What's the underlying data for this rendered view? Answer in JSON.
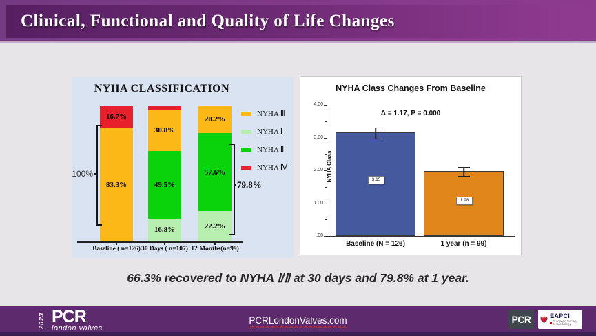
{
  "header": {
    "title": "Clinical, Functional and Quality of Life Changes"
  },
  "statement": "66.3% recovered to NYHA  Ⅰ/Ⅱ at 30 days and 79.8% at 1 year.",
  "chart_data": [
    {
      "type": "bar",
      "variant": "stacked-percent",
      "title": "NYHA CLASSIFICATION",
      "categories": [
        "Baseline ( n=126)",
        "30 Days ( n=107)",
        "12 Months(n=99)"
      ],
      "legend_order": [
        "NYHA Ⅲ",
        "NYHA Ⅰ",
        "NYHA Ⅱ",
        "NYHA Ⅳ"
      ],
      "colors": {
        "NYHA Ⅲ": "#fcb816",
        "NYHA Ⅰ": "#b7efaf",
        "NYHA Ⅱ": "#0bd30b",
        "NYHA Ⅳ": "#e8202c"
      },
      "bars": [
        {
          "category": "Baseline ( n=126)",
          "segments": [
            {
              "series": "NYHA Ⅳ",
              "value": 16.7,
              "label": "16.7%"
            },
            {
              "series": "NYHA Ⅲ",
              "value": 83.3,
              "label": "83.3%"
            }
          ]
        },
        {
          "category": "30 Days ( n=107)",
          "segments": [
            {
              "series": "NYHA Ⅳ",
              "value": 2.9,
              "label": ""
            },
            {
              "series": "NYHA Ⅲ",
              "value": 30.8,
              "label": "30.8%"
            },
            {
              "series": "NYHA Ⅱ",
              "value": 49.5,
              "label": "49.5%"
            },
            {
              "series": "NYHA Ⅰ",
              "value": 16.8,
              "label": "16.8%"
            }
          ]
        },
        {
          "category": "12 Months(n=99)",
          "segments": [
            {
              "series": "NYHA Ⅲ",
              "value": 20.2,
              "label": "20.2%"
            },
            {
              "series": "NYHA Ⅱ",
              "value": 57.6,
              "label": "57.6%"
            },
            {
              "series": "NYHA Ⅰ",
              "value": 22.2,
              "label": "22.2%"
            }
          ]
        }
      ],
      "brackets": [
        {
          "side": "left",
          "label": "100%"
        },
        {
          "side": "right",
          "label": "79.8%"
        }
      ]
    },
    {
      "type": "bar",
      "title": "NYHA Class Changes From Baseline",
      "annotation": "Δ = 1.17, P = 0.000",
      "categories": [
        "Baseline (N = 126)",
        "1 year (n = 99)"
      ],
      "values": [
        3.15,
        1.98
      ],
      "value_labels": [
        "3.15",
        "1.98"
      ],
      "errors": [
        0.15,
        0.13
      ],
      "bar_colors": [
        "#44599e",
        "#e0861a"
      ],
      "ylabel": "NYHA Class",
      "yticks": [
        "4.00",
        "3.00",
        "2.00",
        "1.00",
        ".00"
      ],
      "ylim": [
        0,
        4
      ],
      "legend_position": "none",
      "grid": false
    }
  ],
  "footer": {
    "link": "PCRLondonValves.com",
    "logo": {
      "year": "2023",
      "brand": "PCR",
      "sub": "london valves"
    },
    "badges": [
      {
        "label": "PCR"
      },
      {
        "label": "EAPCI",
        "sub": "European Society of Cardiology"
      }
    ]
  }
}
